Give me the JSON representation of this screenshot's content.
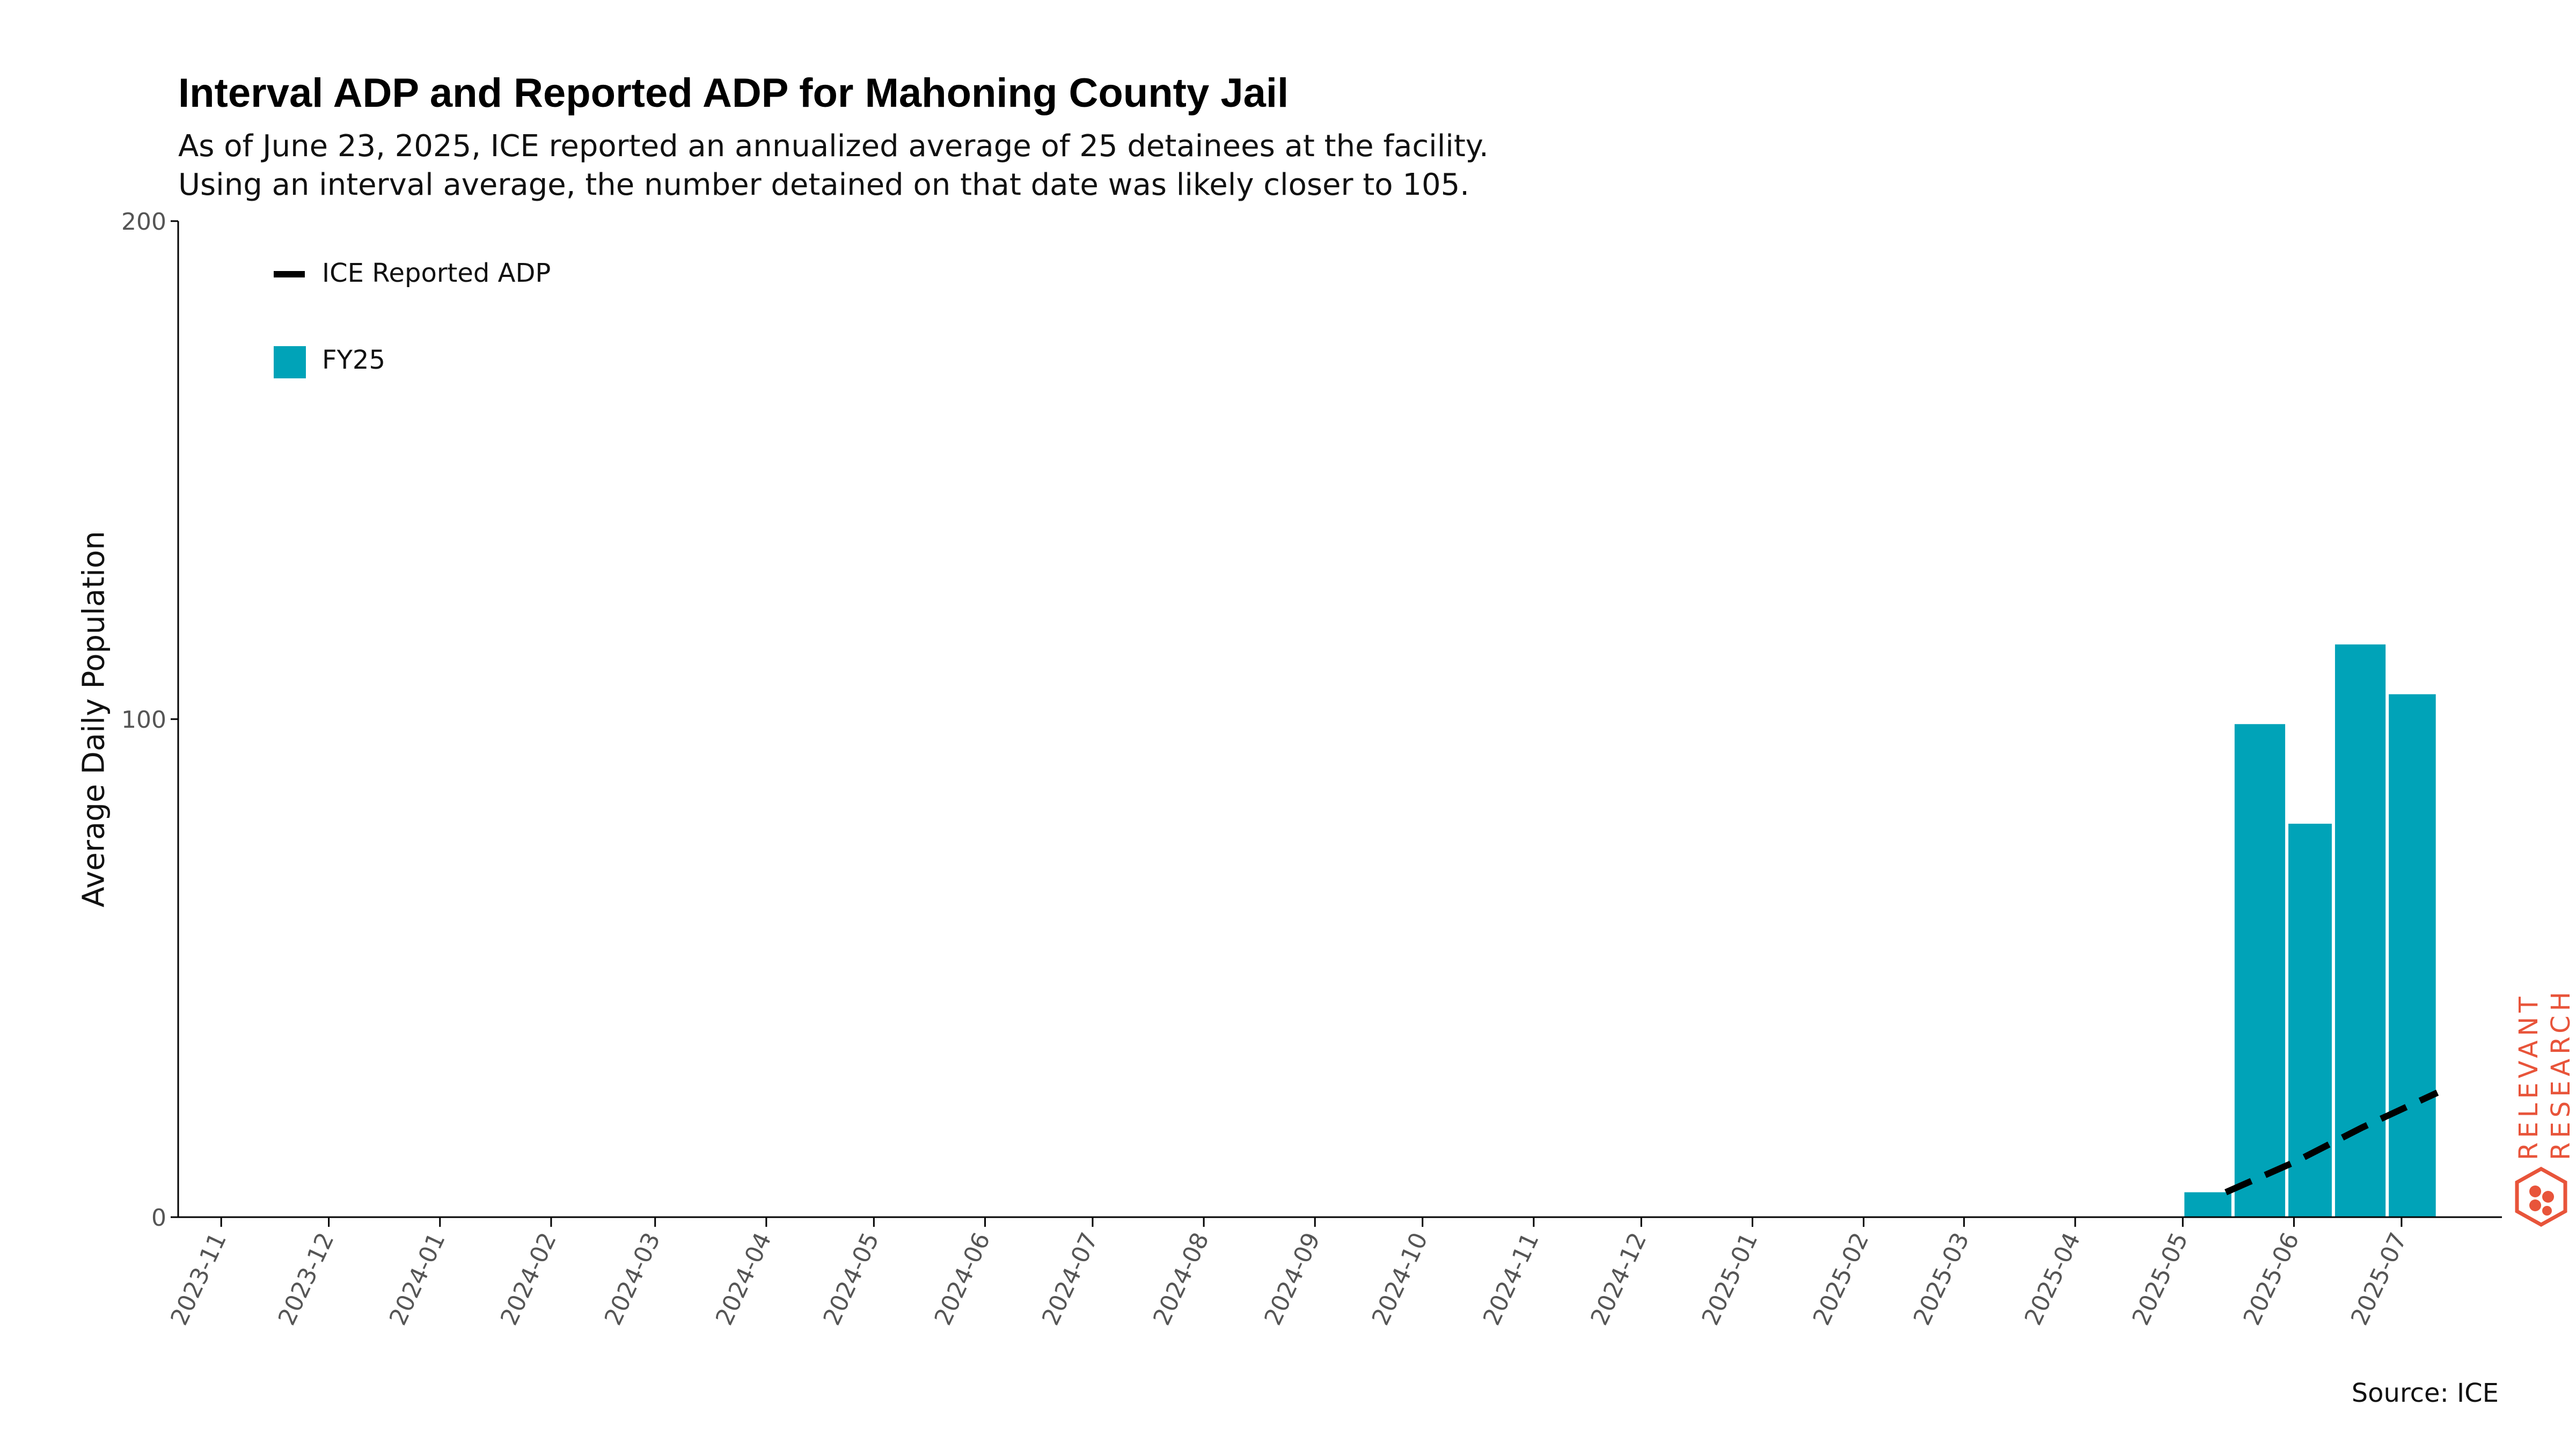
{
  "chart_data": {
    "type": "bar",
    "title": "Interval ADP and Reported ADP for Mahoning County Jail",
    "subtitle_lines": [
      "As of June 23, 2025, ICE reported an annualized average of 25 detainees at the facility.",
      "Using an interval average, the number detained on that date was likely closer to 105."
    ],
    "ylabel": "Average Daily Population",
    "xlabel": "",
    "ylim": [
      0,
      200
    ],
    "yticks": [
      0,
      100,
      200
    ],
    "xticks": [
      "2023-11",
      "2023-12",
      "2024-01",
      "2024-02",
      "2024-03",
      "2024-04",
      "2024-05",
      "2024-06",
      "2024-07",
      "2024-08",
      "2024-09",
      "2024-10",
      "2024-11",
      "2024-12",
      "2025-01",
      "2025-02",
      "2025-03",
      "2025-04",
      "2025-05",
      "2025-06",
      "2025-07"
    ],
    "xrange": [
      "2023-10-20",
      "2025-07-29"
    ],
    "series": [
      {
        "name": "FY25",
        "kind": "bar",
        "color": "#00a3b8",
        "bars": [
          {
            "start": "2025-05-01",
            "end": "2025-05-15",
            "value": 5
          },
          {
            "start": "2025-05-15",
            "end": "2025-05-30",
            "value": 99
          },
          {
            "start": "2025-05-30",
            "end": "2025-06-12",
            "value": 79
          },
          {
            "start": "2025-06-12",
            "end": "2025-06-27",
            "value": 115
          },
          {
            "start": "2025-06-27",
            "end": "2025-07-11",
            "value": 105
          }
        ]
      },
      {
        "name": "ICE Reported ADP",
        "kind": "line",
        "style": "dashed",
        "color": "#000000",
        "points": [
          {
            "x": "2025-05-13",
            "y": 5
          },
          {
            "x": "2025-06-01",
            "y": 11
          },
          {
            "x": "2025-06-20",
            "y": 18
          },
          {
            "x": "2025-07-11",
            "y": 25
          }
        ]
      }
    ],
    "legend": {
      "position": "top-left",
      "entries": [
        "ICE Reported ADP",
        "FY25"
      ]
    },
    "grid": false
  },
  "source": "Source: ICE",
  "logo": {
    "line1": "RELEVANT",
    "line2": "RESEARCH",
    "color": "#e8543a"
  }
}
